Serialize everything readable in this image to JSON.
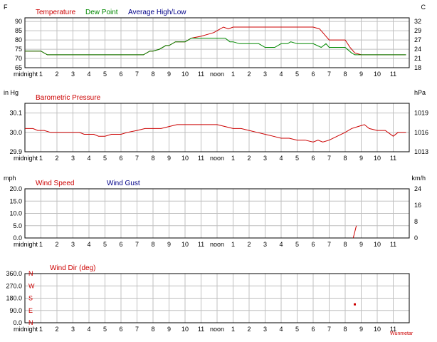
{
  "colors": {
    "temperature": "#cc0000",
    "dew_point": "#008800",
    "avg_high_low": "#000088",
    "pressure": "#cc0000",
    "wind_speed": "#cc0000",
    "wind_gust": "#000088",
    "wind_dir": "#cc0000",
    "grid": "#c0c0c0",
    "plot_bg": "#ffffff",
    "axis_text": "#000000",
    "watermark": "#cc0000"
  },
  "watermark": "Wunmetar",
  "x_axis_labels": [
    "midnight",
    "1",
    "2",
    "3",
    "4",
    "5",
    "6",
    "7",
    "8",
    "9",
    "10",
    "11",
    "noon",
    "1",
    "2",
    "3",
    "4",
    "5",
    "6",
    "7",
    "8",
    "9",
    "10",
    "11"
  ],
  "chart_data": [
    {
      "id": "temp",
      "type": "line",
      "unit_left": "F",
      "unit_right": "C",
      "legend": [
        "Temperature",
        "Dew Point",
        "Average High/Low"
      ],
      "ylim": [
        65,
        92
      ],
      "yticks_left": [
        "65",
        "70",
        "75",
        "80",
        "85",
        "90"
      ],
      "yticks_right": [
        "18",
        "21",
        "24",
        "27",
        "29",
        "32"
      ],
      "grid": true,
      "series": [
        {
          "name": "Temperature",
          "color_key": "temperature",
          "points": [
            [
              0,
              74
            ],
            [
              1,
              74
            ],
            [
              1.4,
              72
            ],
            [
              2,
              72
            ],
            [
              3,
              72
            ],
            [
              4,
              72
            ],
            [
              5,
              72
            ],
            [
              6,
              72
            ],
            [
              7,
              72
            ],
            [
              7.4,
              72
            ],
            [
              7.8,
              74
            ],
            [
              8,
              74
            ],
            [
              8.4,
              75
            ],
            [
              8.8,
              77
            ],
            [
              9,
              77
            ],
            [
              9.4,
              79
            ],
            [
              10,
              79
            ],
            [
              10.4,
              81
            ],
            [
              11,
              82
            ],
            [
              11.4,
              83
            ],
            [
              11.8,
              84
            ],
            [
              12,
              85
            ],
            [
              12.4,
              87
            ],
            [
              12.7,
              86
            ],
            [
              13,
              87
            ],
            [
              14,
              87
            ],
            [
              15,
              87
            ],
            [
              16,
              87
            ],
            [
              17,
              87
            ],
            [
              18,
              87
            ],
            [
              18.4,
              86
            ],
            [
              18.6,
              84
            ],
            [
              18.8,
              82
            ],
            [
              19,
              80
            ],
            [
              19.6,
              80
            ],
            [
              20,
              80
            ],
            [
              20.3,
              76
            ],
            [
              20.6,
              73
            ],
            [
              21,
              72
            ],
            [
              22,
              72
            ],
            [
              23,
              72
            ],
            [
              23.8,
              72
            ]
          ]
        },
        {
          "name": "Dew Point",
          "color_key": "dew_point",
          "points": [
            [
              0,
              74
            ],
            [
              1,
              74
            ],
            [
              1.4,
              72
            ],
            [
              2,
              72
            ],
            [
              3,
              72
            ],
            [
              4,
              72
            ],
            [
              5,
              72
            ],
            [
              6,
              72
            ],
            [
              7,
              72
            ],
            [
              7.4,
              72
            ],
            [
              7.8,
              74
            ],
            [
              8,
              74
            ],
            [
              8.4,
              75
            ],
            [
              8.8,
              77
            ],
            [
              9,
              77
            ],
            [
              9.4,
              79
            ],
            [
              10,
              79
            ],
            [
              10.4,
              81
            ],
            [
              11,
              81
            ],
            [
              12,
              81
            ],
            [
              12.5,
              81
            ],
            [
              12.8,
              79
            ],
            [
              13,
              79
            ],
            [
              13.4,
              78
            ],
            [
              14,
              78
            ],
            [
              14.6,
              78
            ],
            [
              15,
              76
            ],
            [
              15.6,
              76
            ],
            [
              16,
              78
            ],
            [
              16.4,
              78
            ],
            [
              16.6,
              79
            ],
            [
              17,
              78
            ],
            [
              18,
              78
            ],
            [
              18.5,
              76
            ],
            [
              18.8,
              78
            ],
            [
              19,
              76
            ],
            [
              19.6,
              76
            ],
            [
              20,
              76
            ],
            [
              20.4,
              73
            ],
            [
              20.6,
              72
            ],
            [
              21,
              72
            ],
            [
              22,
              72
            ],
            [
              23,
              72
            ],
            [
              23.8,
              72
            ]
          ]
        }
      ]
    },
    {
      "id": "pressure",
      "type": "line",
      "unit_left": "in Hg",
      "unit_right": "hPa",
      "legend": [
        "Barometric Pressure"
      ],
      "ylim": [
        29.9,
        30.15
      ],
      "yticks_left": [
        "29.9",
        "30.0",
        "30.1"
      ],
      "yticks_right": [
        "1013",
        "1016",
        "1019"
      ],
      "grid": true,
      "series": [
        {
          "name": "Barometric Pressure",
          "color_key": "pressure",
          "points": [
            [
              0,
              30.02
            ],
            [
              0.5,
              30.02
            ],
            [
              0.8,
              30.01
            ],
            [
              1.2,
              30.01
            ],
            [
              1.6,
              30.0
            ],
            [
              2,
              30.0
            ],
            [
              3,
              30.0
            ],
            [
              3.4,
              30.0
            ],
            [
              3.7,
              29.99
            ],
            [
              4,
              29.99
            ],
            [
              4.3,
              29.99
            ],
            [
              4.6,
              29.98
            ],
            [
              5,
              29.98
            ],
            [
              5.4,
              29.99
            ],
            [
              6,
              29.99
            ],
            [
              6.4,
              30.0
            ],
            [
              7,
              30.01
            ],
            [
              7.5,
              30.02
            ],
            [
              8,
              30.02
            ],
            [
              8.5,
              30.02
            ],
            [
              9,
              30.03
            ],
            [
              9.5,
              30.04
            ],
            [
              10,
              30.04
            ],
            [
              11,
              30.04
            ],
            [
              12,
              30.04
            ],
            [
              12.5,
              30.03
            ],
            [
              13,
              30.02
            ],
            [
              13.5,
              30.02
            ],
            [
              14,
              30.01
            ],
            [
              14.5,
              30.0
            ],
            [
              15,
              29.99
            ],
            [
              15.5,
              29.98
            ],
            [
              16,
              29.97
            ],
            [
              16.5,
              29.97
            ],
            [
              17,
              29.96
            ],
            [
              17.5,
              29.96
            ],
            [
              18,
              29.95
            ],
            [
              18.3,
              29.96
            ],
            [
              18.6,
              29.95
            ],
            [
              19,
              29.96
            ],
            [
              19.5,
              29.98
            ],
            [
              20,
              30.0
            ],
            [
              20.4,
              30.02
            ],
            [
              20.8,
              30.03
            ],
            [
              21.2,
              30.04
            ],
            [
              21.5,
              30.02
            ],
            [
              22,
              30.01
            ],
            [
              22.5,
              30.01
            ],
            [
              23,
              29.98
            ],
            [
              23.3,
              30.0
            ],
            [
              23.8,
              30.0
            ]
          ]
        }
      ]
    },
    {
      "id": "wind",
      "type": "line",
      "unit_left": "mph",
      "unit_right": "km/h",
      "legend": [
        "Wind Speed",
        "Wind Gust"
      ],
      "ylim": [
        0,
        20
      ],
      "yticks_left": [
        "0.0",
        "5.0",
        "10.0",
        "15.0",
        "20.0"
      ],
      "yticks_right": [
        "0",
        "8",
        "16",
        "24"
      ],
      "grid": true,
      "series": [
        {
          "name": "Wind Speed",
          "color_key": "wind_speed",
          "points": [
            [
              20.5,
              0
            ],
            [
              20.7,
              5
            ]
          ]
        }
      ]
    },
    {
      "id": "winddir",
      "type": "scatter",
      "unit_left": "",
      "unit_right": "",
      "legend": [
        "Wind Dir (deg)"
      ],
      "ylim": [
        0,
        360
      ],
      "yticks_left": [
        "0.0",
        "90.0",
        "180.0",
        "270.0",
        "360.0"
      ],
      "yticks_right": [],
      "compass": [
        "N",
        "E",
        "S",
        "W",
        "N"
      ],
      "grid": true,
      "series": [
        {
          "name": "Wind Dir (deg)",
          "color_key": "wind_dir",
          "points": [
            [
              20.6,
              135
            ]
          ]
        }
      ]
    }
  ]
}
